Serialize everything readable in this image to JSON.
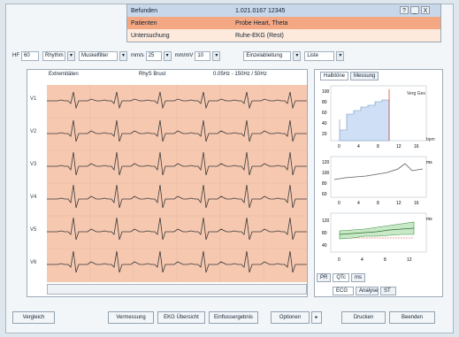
{
  "top_info": {
    "row1": {
      "label": "Befunden",
      "value": "1.021.0167 12345"
    },
    "row2": {
      "label": "Patienten",
      "value": "Probe Heart, Theta"
    },
    "row3": {
      "label": "Untersuchung",
      "value": "Ruhe-EKG (Rest)"
    },
    "window_buttons": [
      "?",
      "_",
      "X"
    ]
  },
  "toolbar": {
    "hf_label": "HF",
    "hf_value": "60",
    "mode": "Rhythm",
    "filter": "Muskelfilter",
    "speed_label": "mm/s",
    "speed": "25",
    "gain_label": "mm/mV",
    "gain": "10",
    "lead_group": "Einzelableitung",
    "view": "Liste"
  },
  "ecg": {
    "header_left": "Extremitäten",
    "header_mid": "RhyS Brust",
    "header_right": "0.05Hz - 150Hz / 50Hz",
    "leads": [
      "V1",
      "V2",
      "V3",
      "V4",
      "V5",
      "V6"
    ]
  },
  "right_panel": {
    "tabs": [
      "Halbtöne",
      "Messung"
    ],
    "chart1_label": "Verg Ges",
    "chart1_unit": "bpm",
    "chart1_y": [
      "100",
      "80",
      "60",
      "40",
      "20"
    ],
    "chart1_x": [
      "0",
      "4",
      "8",
      "12",
      "16"
    ],
    "chart2_unit": "ms",
    "chart2_y": [
      "120",
      "100",
      "80",
      "60"
    ],
    "chart2_x": [
      "0",
      "4",
      "8",
      "12",
      "16"
    ],
    "chart3_unit": "ms",
    "chart3_y": [
      "120",
      "80",
      "40"
    ],
    "chart3_x": [
      "0",
      "4",
      "8",
      "12"
    ],
    "bottom_tabs": [
      "PR",
      "QTc",
      "ms"
    ],
    "sub_buttons": [
      "ECG",
      "Analyse",
      "ST"
    ]
  },
  "footer": {
    "buttons": [
      "Vergleich",
      "Vermessung",
      "EKG Übersicht",
      "Einflussergebnis",
      "Optionen",
      "Drucken",
      "Beenden"
    ]
  }
}
